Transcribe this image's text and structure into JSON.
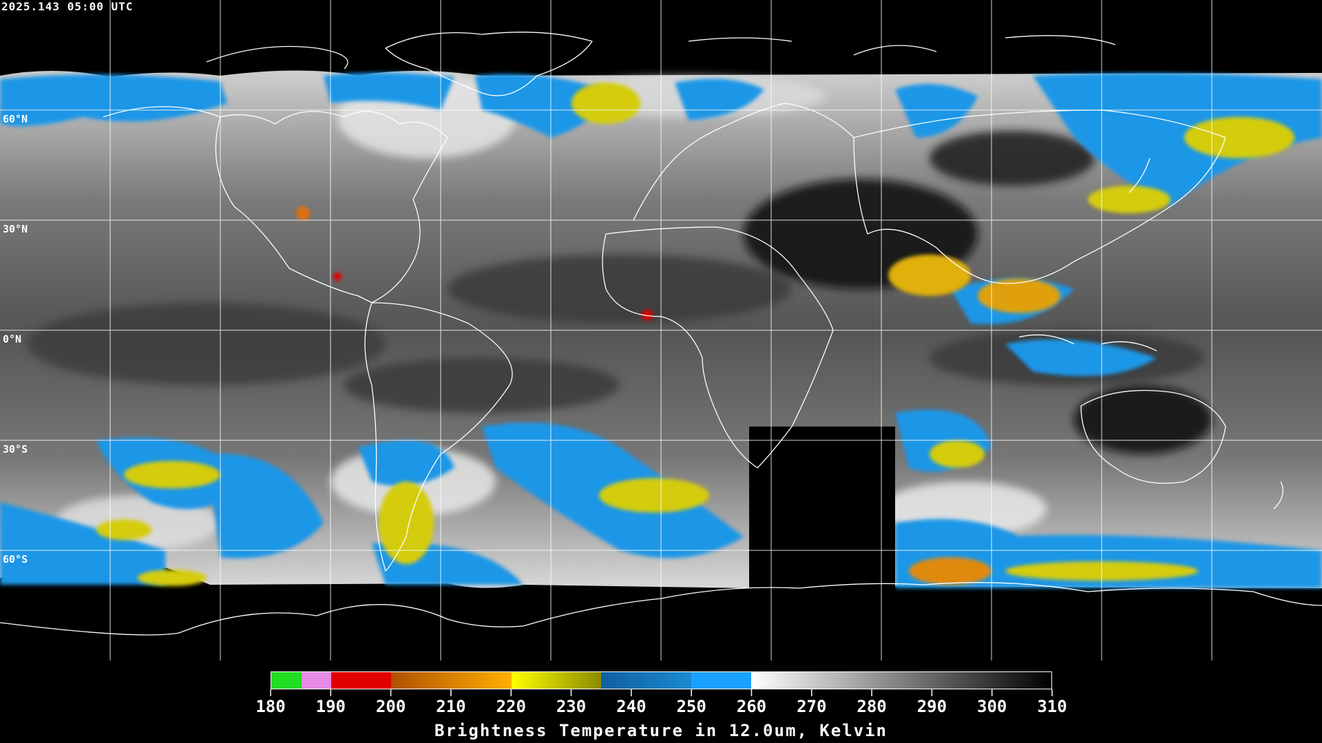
{
  "timestamp": "2025.143 05:00 UTC",
  "lat_labels": [
    "60°N",
    "30°N",
    "0°N",
    "30°S",
    "60°S"
  ],
  "colorbar": {
    "title": "Brightness Temperature in 12.0um, Kelvin",
    "ticks": [
      "180",
      "190",
      "200",
      "210",
      "220",
      "230",
      "240",
      "250",
      "260",
      "270",
      "280",
      "290",
      "300",
      "310"
    ],
    "min": 180,
    "max": 310,
    "segments": [
      {
        "from": 180,
        "to": 185,
        "color": "#22dd22"
      },
      {
        "from": 185,
        "to": 190,
        "color": "#e68ae6"
      },
      {
        "from": 190,
        "to": 200,
        "color": "#e00000"
      },
      {
        "from": 200,
        "to": 220,
        "gradient": [
          "#b05000",
          "#ffb000"
        ]
      },
      {
        "from": 220,
        "to": 235,
        "gradient": [
          "#ffff00",
          "#8a8a00"
        ]
      },
      {
        "from": 235,
        "to": 250,
        "gradient": [
          "#1060a0",
          "#1a8ad0"
        ]
      },
      {
        "from": 250,
        "to": 260,
        "color": "#1aa0ff"
      },
      {
        "from": 260,
        "to": 310,
        "gradient": [
          "#ffffff",
          "#000000"
        ]
      }
    ]
  },
  "colors": {
    "background": "#000000",
    "grid": "#ffffff",
    "coast": "#ffffff"
  }
}
